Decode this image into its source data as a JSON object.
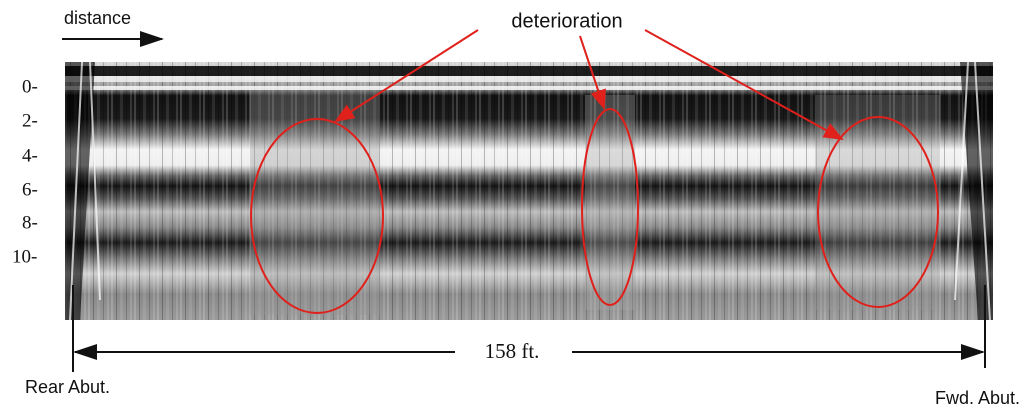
{
  "header": {
    "direction": "distance",
    "callout": "deterioration"
  },
  "depth_ticks": [
    "0-",
    "2-",
    "4-",
    "6-",
    "8-",
    "10-"
  ],
  "dimension": {
    "length": "158 ft."
  },
  "ends": {
    "rear": "Rear Abut.",
    "forward": "Fwd. Abut."
  }
}
